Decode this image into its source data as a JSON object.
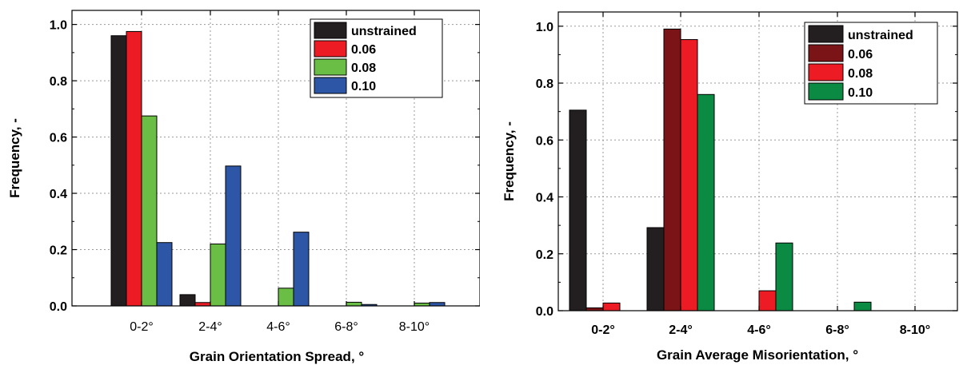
{
  "chart_data": [
    {
      "type": "bar",
      "categories": [
        "0-2°",
        "2-4°",
        "4-6°",
        "6-8°",
        "8-10°"
      ],
      "xlabel": "Grain Orientation Spread, °",
      "ylabel": "Frequency, -",
      "ylim": [
        0,
        1.05
      ],
      "yticks": [
        "0.0",
        "0.2",
        "0.4",
        "0.6",
        "0.8",
        "1.0"
      ],
      "grid": true,
      "legend_position": "top-right",
      "series": [
        {
          "name": "unstrained",
          "color": "#231f20",
          "values": [
            0.96,
            0.04,
            0.0,
            0.0,
            0.0
          ]
        },
        {
          "name": "0.06",
          "color": "#ed1c24",
          "values": [
            0.975,
            0.012,
            0.0,
            0.0,
            0.0
          ]
        },
        {
          "name": "0.08",
          "color": "#6abd45",
          "values": [
            0.675,
            0.22,
            0.063,
            0.013,
            0.01
          ]
        },
        {
          "name": "0.10",
          "color": "#2e56a6",
          "values": [
            0.225,
            0.497,
            0.262,
            0.005,
            0.012
          ]
        }
      ]
    },
    {
      "type": "bar",
      "categories": [
        "0-2°",
        "2-4°",
        "4-6°",
        "6-8°",
        "8-10°"
      ],
      "xlabel": "Grain Average Misorientation, °",
      "ylabel": "Frequency, -",
      "ylim": [
        0,
        1.05
      ],
      "yticks": [
        "0.0",
        "0.2",
        "0.4",
        "0.6",
        "0.8",
        "1.0"
      ],
      "grid": true,
      "legend_position": "top-right",
      "series": [
        {
          "name": "unstrained",
          "color": "#231f20",
          "values": [
            0.705,
            0.292,
            0.0,
            0.0,
            0.0
          ]
        },
        {
          "name": "0.06",
          "color": "#7b1416",
          "values": [
            0.01,
            0.99,
            0.0,
            0.0,
            0.0
          ]
        },
        {
          "name": "0.08",
          "color": "#ed1c24",
          "values": [
            0.027,
            0.953,
            0.07,
            0.0,
            0.0
          ]
        },
        {
          "name": "0.10",
          "color": "#0b8a43",
          "values": [
            0.0,
            0.76,
            0.238,
            0.03,
            0.0
          ]
        }
      ]
    }
  ]
}
